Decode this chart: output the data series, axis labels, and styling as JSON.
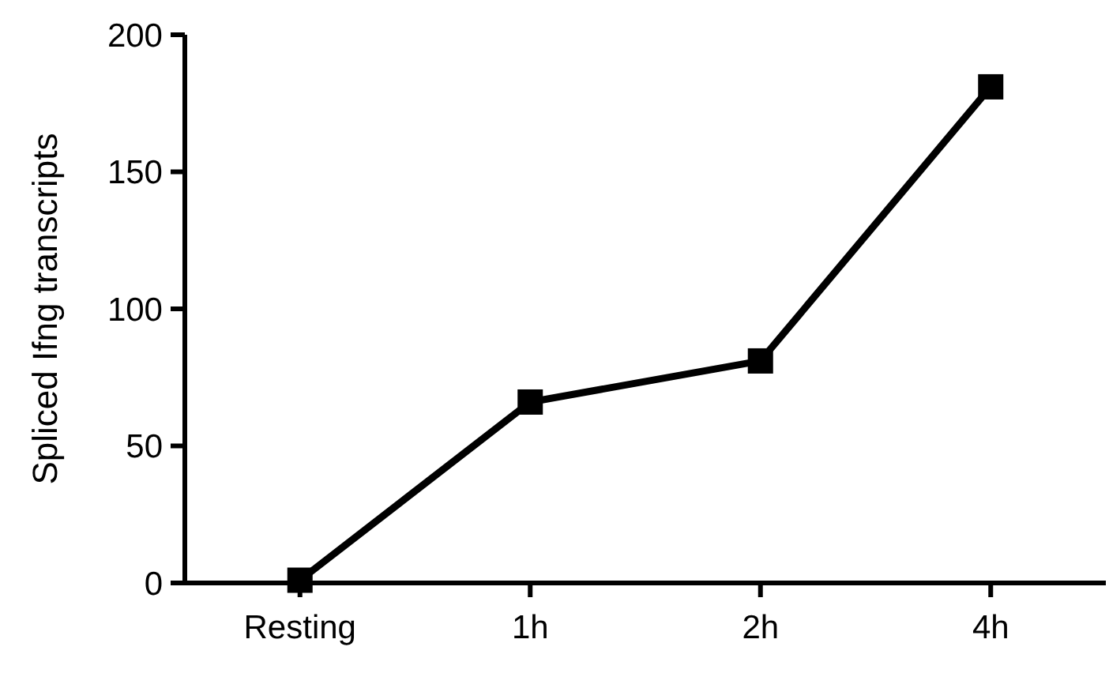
{
  "chart_data": {
    "type": "line",
    "ylabel": "Spliced Ifng transcripts",
    "categories": [
      "Resting",
      "1h",
      "2h",
      "4h"
    ],
    "series": [
      {
        "color": "#000000",
        "values": [
          1,
          66,
          81,
          181
        ]
      }
    ],
    "ylim": [
      0,
      200
    ],
    "yticks": [
      0,
      50,
      100,
      150,
      200
    ],
    "grid": false,
    "marker": "square",
    "line_style": "solid"
  }
}
